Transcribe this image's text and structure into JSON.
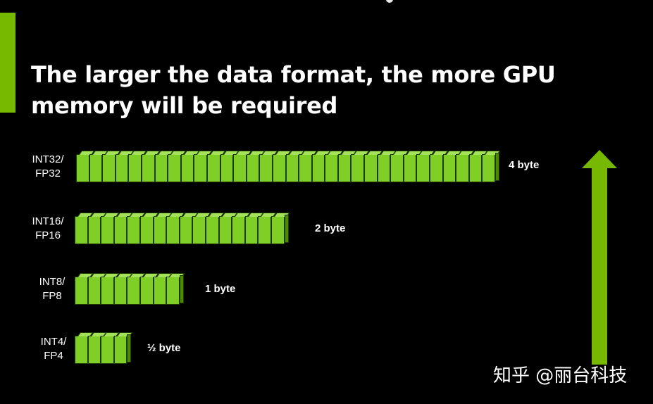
{
  "title": {
    "line1": "The larger the data format, the more GPU",
    "line2": "memory will be required"
  },
  "rows": [
    {
      "label_line1": "INT32/",
      "label_line2": "FP32",
      "size": "4 byte",
      "cells": 32
    },
    {
      "label_line1": "INT16/",
      "label_line2": "FP16",
      "size": "2 byte",
      "cells": 16
    },
    {
      "label_line1": "INT8/",
      "label_line2": "FP8",
      "size": "1 byte",
      "cells": 8
    },
    {
      "label_line1": "INT4/",
      "label_line2": "FP4",
      "size": "½ byte",
      "cells": 4
    }
  ],
  "arrow": {
    "direction": "up",
    "color": "#76b900"
  },
  "watermark": "知乎 @丽台科技",
  "colors": {
    "background": "#000000",
    "accent": "#76b900",
    "cell_face": "#7fcf27",
    "cell_top": "#a4e25a",
    "text": "#ffffff"
  }
}
